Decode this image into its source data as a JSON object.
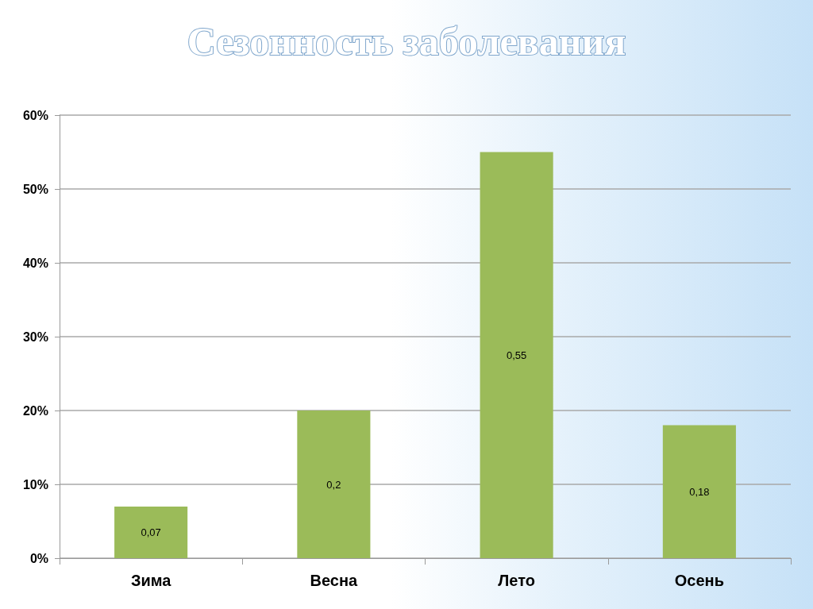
{
  "chart_data": {
    "type": "bar",
    "title": "Сезонность заболевания",
    "categories": [
      "Зима",
      "Весна",
      "Лето",
      "Осень"
    ],
    "values": [
      0.07,
      0.2,
      0.55,
      0.18
    ],
    "value_labels": [
      "0,07",
      "0,2",
      "0,55",
      "0,18"
    ],
    "color": "#9bbb59",
    "ylim": [
      0,
      0.6
    ],
    "yticks": [
      {
        "value": 0,
        "label": "0%"
      },
      {
        "value": 0.1,
        "label": "10%"
      },
      {
        "value": 0.2,
        "label": "20%"
      },
      {
        "value": 0.3,
        "label": "30%"
      },
      {
        "value": 0.4,
        "label": "40%"
      },
      {
        "value": 0.5,
        "label": "50%"
      },
      {
        "value": 0.6,
        "label": "60%"
      }
    ],
    "grid": "y"
  }
}
